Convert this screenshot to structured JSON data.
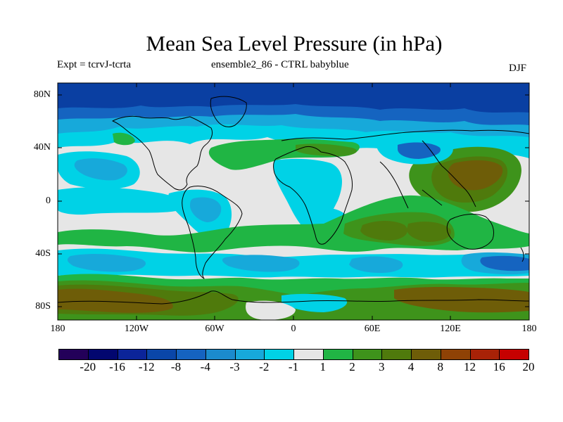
{
  "title": "Mean Sea Level Pressure (in hPa)",
  "subtitle_left": "Expt = tcrvJ-tcrta",
  "subtitle_center": "ensemble2_86 - CTRL babyblue",
  "season": "DJF",
  "lat_labels": [
    "80N",
    "40N",
    "0",
    "40S",
    "80S"
  ],
  "lon_labels": [
    "180",
    "120W",
    "60W",
    "0",
    "60E",
    "120E",
    "180"
  ],
  "colorbar": {
    "labels": [
      "-20",
      "-16",
      "-12",
      "-8",
      "-4",
      "-3",
      "-2",
      "-1",
      "1",
      "2",
      "3",
      "4",
      "8",
      "12",
      "16",
      "20"
    ],
    "colors": [
      "#230059",
      "#02066f",
      "#0b2499",
      "#0a46a8",
      "#1563c0",
      "#1b8bcd",
      "#17a9da",
      "#00d2e6",
      "#e6e6e6",
      "#20b544",
      "#3e931b",
      "#4f7a0c",
      "#6e5d08",
      "#8f4205",
      "#a82207",
      "#c60000"
    ]
  },
  "map_colors": {
    "neg_4": "#0a3fa2",
    "neg_3": "#1564c0",
    "neg_2": "#17a9da",
    "neg_1": "#00d2e6",
    "neutral": "#e6e6e6",
    "pos_1": "#20b544",
    "pos_2": "#3e931b",
    "pos_3": "#4f7a0c",
    "pos_4": "#6e5d08",
    "coast": "#000000"
  }
}
